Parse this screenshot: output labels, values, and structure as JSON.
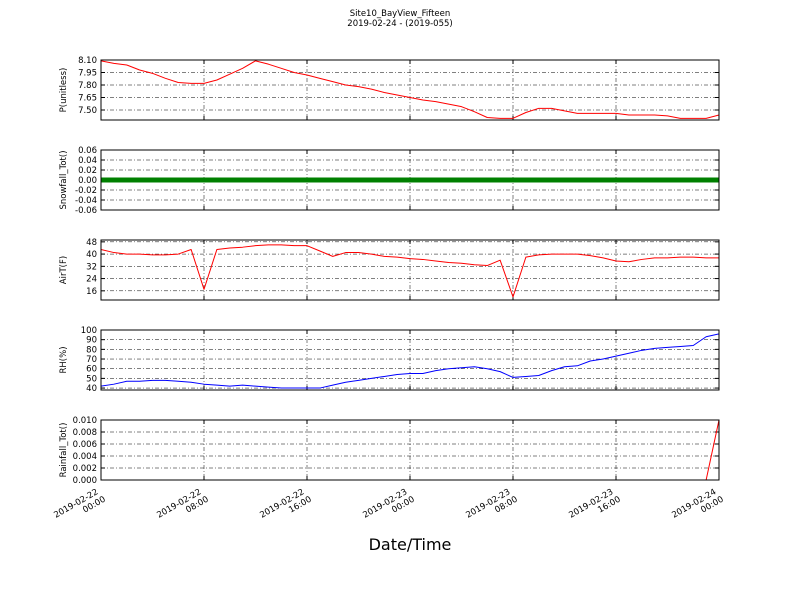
{
  "chart_data": {
    "type": "line",
    "title": "Site10_BayView_Fifteen",
    "subtitle": "2019-02-24 - (2019-055)",
    "xlabel": "Date/Time",
    "x": [
      "2019-02-22 00:00",
      "2019-02-22 01:00",
      "2019-02-22 02:00",
      "2019-02-22 03:00",
      "2019-02-22 04:00",
      "2019-02-22 05:00",
      "2019-02-22 06:00",
      "2019-02-22 07:00",
      "2019-02-22 08:00",
      "2019-02-22 09:00",
      "2019-02-22 10:00",
      "2019-02-22 11:00",
      "2019-02-22 12:00",
      "2019-02-22 13:00",
      "2019-02-22 14:00",
      "2019-02-22 15:00",
      "2019-02-22 16:00",
      "2019-02-22 17:00",
      "2019-02-22 18:00",
      "2019-02-22 19:00",
      "2019-02-22 20:00",
      "2019-02-22 21:00",
      "2019-02-22 22:00",
      "2019-02-22 23:00",
      "2019-02-23 00:00",
      "2019-02-23 01:00",
      "2019-02-23 02:00",
      "2019-02-23 03:00",
      "2019-02-23 04:00",
      "2019-02-23 05:00",
      "2019-02-23 06:00",
      "2019-02-23 07:00",
      "2019-02-23 08:00",
      "2019-02-23 09:00",
      "2019-02-23 10:00",
      "2019-02-23 11:00",
      "2019-02-23 12:00",
      "2019-02-23 13:00",
      "2019-02-23 14:00",
      "2019-02-23 15:00",
      "2019-02-23 16:00",
      "2019-02-23 17:00",
      "2019-02-23 18:00",
      "2019-02-23 19:00",
      "2019-02-23 20:00",
      "2019-02-23 21:00",
      "2019-02-23 22:00",
      "2019-02-23 23:00",
      "2019-02-24 00:00"
    ],
    "xlim": [
      "2019-02-22 00:00",
      "2019-02-24 00:00"
    ],
    "xticks": [
      "2019-02-22 00:00",
      "2019-02-22 08:00",
      "2019-02-22 16:00",
      "2019-02-23 00:00",
      "2019-02-23 08:00",
      "2019-02-23 16:00",
      "2019-02-24 00:00"
    ],
    "grid": true,
    "panels": [
      {
        "ylabel": "P(unitless)",
        "ylim": [
          7.38,
          8.1
        ],
        "yticks": [
          {
            "value": 7.5,
            "label": "7.50"
          },
          7.65,
          {
            "value": 7.8,
            "label": "7.80"
          },
          7.95,
          {
            "value": 8.1,
            "label": "8.10"
          }
        ],
        "series": [
          {
            "color": "#ff0000",
            "values": [
              8.09,
              8.06,
              8.04,
              7.98,
              7.94,
              7.88,
              7.83,
              7.82,
              7.82,
              7.86,
              7.93,
              8.0,
              8.09,
              8.05,
              8.0,
              7.95,
              7.92,
              7.88,
              7.84,
              7.8,
              7.78,
              7.75,
              7.71,
              7.68,
              7.65,
              7.62,
              7.6,
              7.57,
              7.54,
              7.48,
              7.41,
              7.4,
              7.4,
              7.47,
              7.52,
              7.52,
              7.49,
              7.46,
              7.46,
              7.46,
              7.46,
              7.44,
              7.44,
              7.44,
              7.43,
              7.4,
              7.4,
              7.4,
              7.44
            ]
          }
        ]
      },
      {
        "ylabel": "Snowfall_Tot()",
        "ylim": [
          -0.06,
          0.06
        ],
        "yticks": [
          -0.06,
          -0.04,
          -0.02,
          {
            "value": 0,
            "label": "0.00"
          },
          0.02,
          0.04,
          0.06
        ],
        "series": [
          {
            "color": "#008000",
            "values": [
              0,
              0,
              0,
              0,
              0,
              0,
              0,
              0,
              0,
              0,
              0,
              0,
              0,
              0,
              0,
              0,
              0,
              0,
              0,
              0,
              0,
              0,
              0,
              0,
              0,
              0,
              0,
              0,
              0,
              0,
              0,
              0,
              0,
              0,
              0,
              0,
              0,
              0,
              0,
              0,
              0,
              0,
              0,
              0,
              0,
              0,
              0,
              0,
              0
            ]
          }
        ]
      },
      {
        "ylabel": "AirT(F)",
        "ylim": [
          10,
          49.2
        ],
        "yticks": [
          16,
          24,
          32,
          40,
          48
        ],
        "series": [
          {
            "color": "#ff0000",
            "values": [
              43,
              41,
              40,
              40,
              39.5,
              39.5,
              40,
              43,
              17,
              43,
              44,
              44.5,
              45.5,
              46,
              46,
              45.5,
              45.5,
              42,
              38.5,
              41,
              41,
              40,
              38.5,
              38,
              37,
              36.5,
              35.5,
              34.5,
              34,
              33,
              32.5,
              36,
              12,
              38,
              39.5,
              40,
              40,
              40,
              39,
              37.5,
              35.5,
              35,
              36.5,
              37.5,
              37.5,
              38,
              38,
              37.5,
              37.5
            ]
          }
        ]
      },
      {
        "ylabel": "RH(%)",
        "ylim": [
          38,
          100
        ],
        "yticks": [
          40,
          50,
          60,
          70,
          80,
          90,
          100
        ],
        "series": [
          {
            "color": "#0000ff",
            "values": [
              42,
              44,
              47,
              47,
              48,
              48,
              47,
              46,
              44,
              43,
              42,
              43,
              42,
              41,
              40,
              40,
              40,
              40,
              43,
              46,
              48,
              50,
              52,
              54,
              55,
              55,
              58,
              60,
              61,
              62,
              60,
              57,
              51,
              52,
              53,
              58,
              62,
              63,
              68,
              70,
              73,
              76,
              79,
              81,
              82,
              83,
              84,
              93,
              96
            ]
          }
        ]
      },
      {
        "ylabel": "Rainfall_Tot()",
        "ylim": [
          0,
          0.01
        ],
        "yticks": [
          {
            "value": 0,
            "label": "0.000"
          },
          0.002,
          0.004,
          0.006,
          0.008,
          {
            "value": 0.01,
            "label": "0.010"
          }
        ],
        "series": [
          {
            "color": "#ff0000",
            "values": [
              0,
              0,
              0,
              0,
              0,
              0,
              0,
              0,
              0,
              0,
              0,
              0,
              0,
              0,
              0,
              0,
              0,
              0,
              0,
              0,
              0,
              0,
              0,
              0,
              0,
              0,
              0,
              0,
              0,
              0,
              0,
              0,
              0,
              0,
              0,
              0,
              0,
              0,
              0,
              0,
              0,
              0,
              0,
              0,
              0,
              0,
              0,
              0,
              0.01
            ]
          }
        ]
      }
    ]
  }
}
